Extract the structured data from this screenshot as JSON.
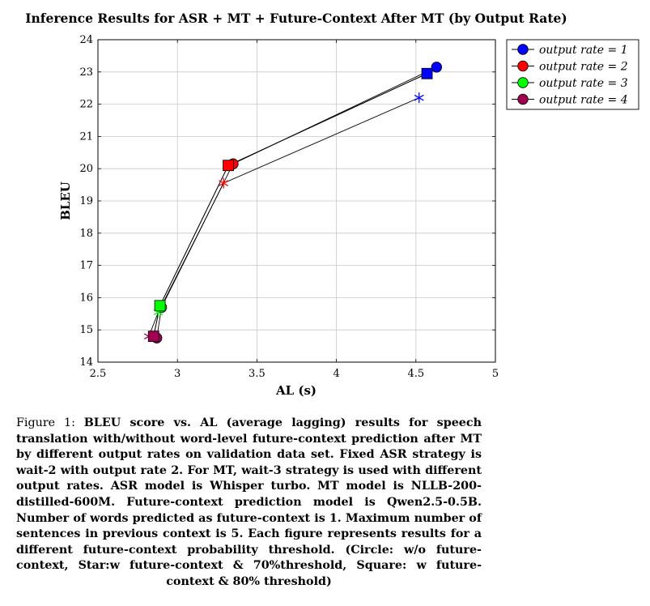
{
  "chart_data": {
    "type": "line",
    "title": "Inference Results for ASR + MT + Future-Context After MT (by Output Rate)",
    "xlabel": "AL (s)",
    "ylabel": "BLEU",
    "xlim": [
      2.5,
      5
    ],
    "ylim": [
      14,
      24
    ],
    "xticks": [
      "2.5",
      "3",
      "3.5",
      "4",
      "4.5",
      "5"
    ],
    "yticks": [
      "14",
      "15",
      "16",
      "17",
      "18",
      "19",
      "20",
      "21",
      "22",
      "23",
      "24"
    ],
    "grid": true,
    "legend_position": "outside-top-right",
    "marker_legend": [
      "Circle: w/o future-context",
      "Star: w future-context & 70% threshold",
      "Square: w future-context & 80% threshold"
    ],
    "series": [
      {
        "name": "output rate = 1",
        "color": "#0000ff",
        "marker": "circle",
        "x": [
          4.63,
          3.35,
          2.9,
          2.87
        ],
        "y": [
          23.15,
          20.15,
          15.7,
          14.75
        ]
      },
      {
        "name": "output rate = 2",
        "color": "#ff0000",
        "marker": "circle",
        "x": [
          4.52,
          3.29,
          2.88,
          2.82
        ],
        "y": [
          22.2,
          19.55,
          15.55,
          14.8
        ]
      },
      {
        "name": "output rate = 3",
        "color": "#00ff00",
        "marker": "circle",
        "x": [
          4.57,
          3.32,
          2.89,
          2.85
        ],
        "y": [
          22.95,
          20.1,
          15.75,
          14.8
        ]
      },
      {
        "name": "output rate = 4",
        "color": "#a0004f",
        "marker": "circle",
        "x": [
          4.57,
          3.32,
          2.89,
          2.85
        ],
        "y": [
          22.95,
          20.1,
          15.75,
          14.8
        ]
      }
    ],
    "point_markers": [
      {
        "x": 4.63,
        "y": 23.15,
        "shape": "circle",
        "color": "#0000ff"
      },
      {
        "x": 4.52,
        "y": 22.2,
        "shape": "star",
        "color": "#0000ff"
      },
      {
        "x": 4.57,
        "y": 22.95,
        "shape": "square",
        "color": "#0000ff"
      },
      {
        "x": 3.35,
        "y": 20.15,
        "shape": "circle",
        "color": "#ff0000"
      },
      {
        "x": 3.29,
        "y": 19.55,
        "shape": "star",
        "color": "#ff0000"
      },
      {
        "x": 3.32,
        "y": 20.1,
        "shape": "square",
        "color": "#ff0000"
      },
      {
        "x": 2.9,
        "y": 15.7,
        "shape": "circle",
        "color": "#00ff00"
      },
      {
        "x": 2.88,
        "y": 15.55,
        "shape": "star",
        "color": "#00ff00"
      },
      {
        "x": 2.89,
        "y": 15.75,
        "shape": "square",
        "color": "#00ff00"
      },
      {
        "x": 2.87,
        "y": 14.75,
        "shape": "circle",
        "color": "#a0004f"
      },
      {
        "x": 2.82,
        "y": 14.8,
        "shape": "star",
        "color": "#a0004f"
      },
      {
        "x": 2.85,
        "y": 14.8,
        "shape": "square",
        "color": "#a0004f"
      }
    ]
  },
  "caption": {
    "prefix": "Figure 1:",
    "text": "BLEU score vs. AL (average lagging) results for speech translation with/without word-level future-context prediction after MT by different output rates on validation data set. Fixed ASR strategy is wait-2 with output rate 2. For MT, wait-3 strategy is used with different output rates. ASR model is Whisper turbo. MT model is NLLB-200-distilled-600M. Future-context prediction model is Qwen2.5-0.5B. Number of words predicted as future-context is 1. Maximum number of sentences in previous context is 5. Each figure represents results for a different future-context probability threshold. (Circle: w/o future-context, Star:w future-context & 70%threshold, Square: w future-context & 80% threshold)"
  }
}
